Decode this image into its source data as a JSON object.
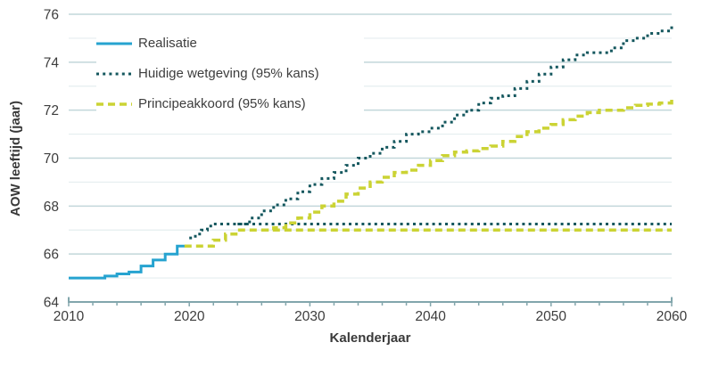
{
  "figure": {
    "background": "#ffffff",
    "text_color": "#3a3a3a"
  },
  "legend": {
    "items": [
      {
        "label": "Realisatie",
        "color": "#26a3d0",
        "pattern": "solid"
      },
      {
        "label": "Huidige wetgeving (95% kans)",
        "color": "#14575e",
        "pattern": "dotted"
      },
      {
        "label": "Principeakkoord (95% kans)",
        "color": "#cbd334",
        "pattern": "dashed"
      }
    ]
  },
  "chart_data": {
    "type": "line",
    "title": "",
    "xlabel": "Kalenderjaar",
    "ylabel": "AOW leeftijd (jaar)",
    "xlim": [
      2010,
      2060
    ],
    "ylim": [
      64,
      76
    ],
    "x_ticks": [
      2010,
      2020,
      2030,
      2040,
      2050,
      2060
    ],
    "x_minor_tick_step": 2,
    "y_ticks": [
      64,
      66,
      68,
      70,
      72,
      74,
      76
    ],
    "y_minor_ticks": [
      65,
      67,
      69,
      71,
      73,
      75
    ],
    "grid": "horizontal major at even years, lighter minor at odd years",
    "legend_position": "top-left inside plot",
    "colors": {
      "grid_major": "#c2d7da",
      "grid_minor": "#e5eeef",
      "axis": "#82a6ac",
      "tick_text": "#3d3d3d"
    },
    "series": [
      {
        "name": "Realisatie",
        "slug": "realisatie",
        "color": "#26a3d0",
        "dash": "solid",
        "width": 3,
        "step": true,
        "end": 2020,
        "points": [
          [
            2010,
            65
          ],
          [
            2013,
            65.08
          ],
          [
            2014,
            65.17
          ],
          [
            2015,
            65.25
          ],
          [
            2016,
            65.5
          ],
          [
            2017,
            65.75
          ],
          [
            2018,
            66
          ],
          [
            2019,
            66.33
          ]
        ]
      },
      {
        "name": "Huidige wetgeving (95% kans) ondergrens",
        "slug": "huidige-wetgeving-ondergrens",
        "color": "#14575e",
        "dash": "3 4.2",
        "width": 3,
        "step": true,
        "end": 2060,
        "points": [
          [
            2020,
            66.67
          ],
          [
            2020.5,
            66.83
          ],
          [
            2021,
            67
          ],
          [
            2021.5,
            67.17
          ],
          [
            2022,
            67.25
          ]
        ]
      },
      {
        "name": "Huidige wetgeving (95% kans) bovengrens",
        "slug": "huidige-wetgeving-bovengrens",
        "color": "#14575e",
        "dash": "3 4.2",
        "width": 3,
        "step": true,
        "end": 2060,
        "points": [
          [
            2024,
            67.25
          ],
          [
            2025,
            67.5
          ],
          [
            2026,
            67.8
          ],
          [
            2027,
            68.05
          ],
          [
            2028,
            68.3
          ],
          [
            2029,
            68.6
          ],
          [
            2030,
            68.9
          ],
          [
            2031,
            69.15
          ],
          [
            2032,
            69.4
          ],
          [
            2033,
            69.7
          ],
          [
            2034,
            70
          ],
          [
            2035,
            70.2
          ],
          [
            2036,
            70.45
          ],
          [
            2037,
            70.7
          ],
          [
            2038,
            71
          ],
          [
            2039,
            71.1
          ],
          [
            2040,
            71.25
          ],
          [
            2041,
            71.5
          ],
          [
            2042,
            71.8
          ],
          [
            2043,
            72
          ],
          [
            2044,
            72.3
          ],
          [
            2045,
            72.5
          ],
          [
            2046,
            72.6
          ],
          [
            2047,
            72.9
          ],
          [
            2048,
            73.2
          ],
          [
            2049,
            73.5
          ],
          [
            2050,
            73.8
          ],
          [
            2051,
            74.1
          ],
          [
            2052,
            74.3
          ],
          [
            2053,
            74.4
          ],
          [
            2054,
            74.4
          ],
          [
            2055,
            74.6
          ],
          [
            2056,
            74.9
          ],
          [
            2057,
            75
          ],
          [
            2058,
            75.2
          ],
          [
            2059,
            75.3
          ],
          [
            2060,
            75.5
          ]
        ]
      },
      {
        "name": "Principeakkoord (95% kans) ondergrens",
        "slug": "principeakkoord-ondergrens",
        "color": "#cbd334",
        "dash": "8 5",
        "width": 3.5,
        "step": true,
        "end": 2060,
        "points": [
          [
            2019.6,
            66.33
          ],
          [
            2022,
            66.58
          ],
          [
            2023,
            66.83
          ],
          [
            2024,
            67
          ]
        ]
      },
      {
        "name": "Principeakkoord (95% kans) bovengrens",
        "slug": "principeakkoord-bovengrens",
        "color": "#cbd334",
        "dash": "8 5",
        "width": 3.5,
        "step": true,
        "end": 2060,
        "points": [
          [
            2026,
            67
          ],
          [
            2027,
            67.1
          ],
          [
            2028,
            67.3
          ],
          [
            2029,
            67.5
          ],
          [
            2030,
            67.75
          ],
          [
            2031,
            68
          ],
          [
            2032,
            68.2
          ],
          [
            2033,
            68.5
          ],
          [
            2034,
            68.75
          ],
          [
            2035,
            69
          ],
          [
            2036,
            69.2
          ],
          [
            2037,
            69.4
          ],
          [
            2038,
            69.5
          ],
          [
            2039,
            69.7
          ],
          [
            2040,
            69.9
          ],
          [
            2041,
            70.1
          ],
          [
            2042,
            70.25
          ],
          [
            2043,
            70.3
          ],
          [
            2044,
            70.4
          ],
          [
            2045,
            70.5
          ],
          [
            2046,
            70.7
          ],
          [
            2047,
            70.9
          ],
          [
            2048,
            71.1
          ],
          [
            2049,
            71.25
          ],
          [
            2050,
            71.4
          ],
          [
            2051,
            71.6
          ],
          [
            2052,
            71.75
          ],
          [
            2053,
            71.9
          ],
          [
            2054,
            72
          ],
          [
            2055,
            72
          ],
          [
            2056,
            72.1
          ],
          [
            2057,
            72.2
          ],
          [
            2058,
            72.25
          ],
          [
            2059,
            72.3
          ],
          [
            2060,
            72.45
          ]
        ]
      }
    ]
  }
}
